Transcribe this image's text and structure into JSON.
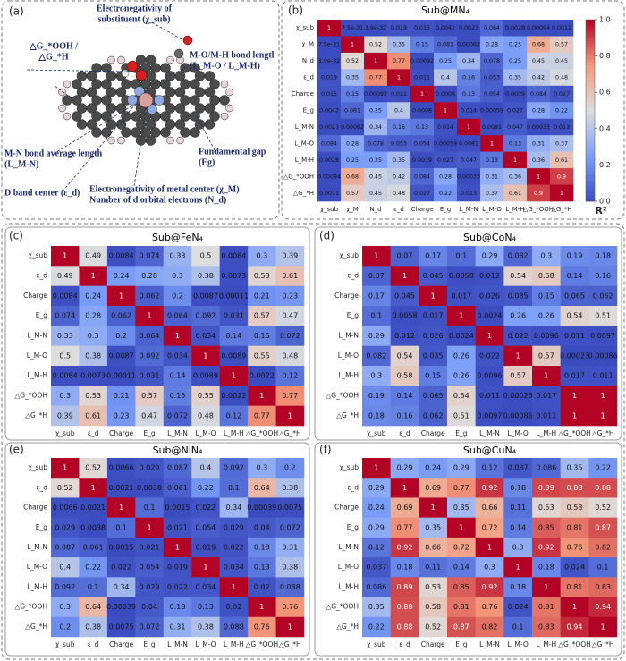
{
  "diagram": {
    "panel": "(a)",
    "labels": [
      [
        "Electronegativity of",
        "substituent (χ_sub)"
      ],
      [
        "△G_*OOH /",
        "△G_*H"
      ],
      [
        "M-O/M-H bond lengtl",
        "(L_M-O / L_M-H)"
      ],
      [
        "M-N bond average length",
        "(L_M-N)"
      ],
      [
        "Fundamental gap",
        "(Eg)"
      ],
      [
        "Electronegativity of metal center (χ_M)",
        "Number of d orbital electrons (N_d)"
      ],
      [
        "D band center (ε_d)"
      ]
    ]
  },
  "chart_data": [
    {
      "type": "heatmap",
      "panel": "(b)",
      "title": "Sub@MN₄",
      "categories": [
        "χ_sub",
        "χ_M",
        "N_d",
        "ε_d",
        "Charge",
        "E_g",
        "L_M-N",
        "L_M-O",
        "L_M-H",
        "△G_*OOH",
        "△G_*H"
      ],
      "values": [
        [
          1,
          7.5e-31,
          3.9e-32,
          0.019,
          0.015,
          0.0042,
          0.0023,
          0.084,
          0.0028,
          0.00094,
          0.0011
        ],
        [
          7.5e-31,
          1,
          0.52,
          0.35,
          0.15,
          0.081,
          0.00062,
          0.28,
          0.25,
          0.68,
          0.57
        ],
        [
          3.9e-32,
          0.52,
          1,
          0.77,
          0.00092,
          0.25,
          0.34,
          0.078,
          0.25,
          0.45,
          0.45
        ],
        [
          0.019,
          0.35,
          0.77,
          1,
          0.011,
          0.4,
          0.16,
          0.053,
          0.35,
          0.42,
          0.48
        ],
        [
          0.015,
          0.15,
          0.00092,
          0.011,
          1,
          0.0008,
          0.13,
          0.054,
          0.0039,
          0.084,
          0.027
        ],
        [
          0.0042,
          0.081,
          0.25,
          0.4,
          0.0008,
          1,
          0.014,
          0.00059,
          0.027,
          0.28,
          0.22
        ],
        [
          0.0023,
          0.00062,
          0.34,
          0.16,
          0.13,
          0.014,
          1,
          0.0081,
          0.047,
          0.00033,
          0.013
        ],
        [
          0.084,
          0.28,
          0.078,
          0.053,
          0.054,
          0.00059,
          0.0081,
          1,
          0.13,
          0.31,
          0.37
        ],
        [
          0.0028,
          0.25,
          0.25,
          0.35,
          0.0039,
          0.027,
          0.047,
          0.13,
          1,
          0.36,
          0.61
        ],
        [
          0.00094,
          0.68,
          0.45,
          0.42,
          0.084,
          0.28,
          0.00033,
          0.31,
          0.36,
          1,
          0.9
        ],
        [
          0.0011,
          0.57,
          0.45,
          0.48,
          0.027,
          0.22,
          0.013,
          0.37,
          0.61,
          0.9,
          1
        ]
      ],
      "colormap": "coolwarm",
      "clim": [
        0,
        1
      ],
      "cticks": [
        {
          "value": 0,
          "label": "0.0"
        },
        0.2,
        0.4,
        0.6,
        0.8,
        {
          "value": 1,
          "label": "1.0"
        }
      ],
      "colorbar_label": "R²"
    },
    {
      "type": "heatmap",
      "panel": "(c)",
      "title": "Sub@FeN₄",
      "categories": [
        "χ_sub",
        "ε_d",
        "Charge",
        "E_g",
        "L_M-N",
        "L_M-O",
        "L_M-H",
        "△G_*OOH",
        "△G_*H"
      ],
      "values": [
        [
          1,
          0.49,
          0.0084,
          0.074,
          0.33,
          0.5,
          0.0084,
          0.3,
          0.39
        ],
        [
          0.49,
          1,
          0.24,
          0.28,
          0.3,
          0.38,
          0.0073,
          0.53,
          0.61
        ],
        [
          0.0084,
          0.24,
          1,
          0.062,
          0.2,
          0.0087,
          0.00011,
          0.21,
          0.23
        ],
        [
          0.074,
          0.28,
          0.062,
          1,
          0.064,
          0.092,
          0.031,
          0.57,
          0.47
        ],
        [
          0.33,
          0.3,
          0.2,
          0.064,
          1,
          0.034,
          0.14,
          0.15,
          0.072
        ],
        [
          0.5,
          0.38,
          0.0087,
          0.092,
          0.034,
          1,
          0.0089,
          0.55,
          0.48
        ],
        [
          0.0084,
          0.0073,
          0.00011,
          0.031,
          0.14,
          0.0089,
          1,
          0.0022,
          0.12
        ],
        [
          0.3,
          0.53,
          0.21,
          0.57,
          0.15,
          0.55,
          0.0022,
          1,
          0.77
        ],
        [
          0.39,
          0.61,
          0.23,
          0.47,
          0.072,
          0.48,
          0.12,
          0.77,
          1
        ]
      ],
      "colormap": "coolwarm",
      "clim": [
        0,
        1
      ]
    },
    {
      "type": "heatmap",
      "panel": "(d)",
      "title": "Sub@CoN₄",
      "categories": [
        "χ_sub",
        "ε_d",
        "Charge",
        "E_g",
        "L_M-N",
        "L_M-O",
        "L_M-H",
        "△G_*OOH",
        "△G_*H"
      ],
      "values": [
        [
          1,
          0.07,
          0.17,
          0.1,
          0.29,
          0.082,
          0.3,
          0.19,
          0.18
        ],
        [
          0.07,
          1,
          0.045,
          0.0058,
          0.012,
          0.54,
          0.58,
          0.14,
          0.16
        ],
        [
          0.17,
          0.045,
          1,
          0.017,
          0.026,
          0.035,
          0.15,
          0.065,
          0.062
        ],
        [
          0.1,
          0.0058,
          0.017,
          1,
          0.0024,
          0.26,
          0.26,
          0.54,
          0.51
        ],
        [
          0.29,
          0.012,
          0.026,
          0.0024,
          1,
          0.022,
          0.0096,
          0.011,
          0.0097
        ],
        [
          0.082,
          0.54,
          0.035,
          0.26,
          0.022,
          1,
          0.57,
          0.00023,
          0.00086
        ],
        [
          0.3,
          0.58,
          0.15,
          0.26,
          0.0096,
          0.57,
          1,
          0.017,
          0.011
        ],
        [
          0.19,
          0.14,
          0.065,
          0.54,
          0.011,
          0.00023,
          0.017,
          1,
          1
        ],
        [
          0.18,
          0.16,
          0.062,
          0.51,
          0.0097,
          0.00086,
          0.011,
          1,
          1
        ]
      ],
      "colormap": "coolwarm",
      "clim": [
        0,
        1
      ]
    },
    {
      "type": "heatmap",
      "panel": "(e)",
      "title": "Sub@NiN₄",
      "categories": [
        "χ_sub",
        "ε_d",
        "Charge",
        "E_g",
        "L_M-N",
        "L_M-O",
        "L_M-H",
        "△G_*OOH",
        "△G_*H"
      ],
      "values": [
        [
          1,
          0.52,
          0.0066,
          0.029,
          0.087,
          0.4,
          0.092,
          0.3,
          0.2
        ],
        [
          0.52,
          1,
          0.0021,
          0.0038,
          0.061,
          0.22,
          0.1,
          0.64,
          0.38
        ],
        [
          0.0066,
          0.0021,
          1,
          0.1,
          0.0015,
          0.022,
          0.34,
          0.00039,
          0.0075
        ],
        [
          0.029,
          0.0038,
          0.1,
          1,
          0.021,
          0.054,
          0.029,
          0.04,
          0.072
        ],
        [
          0.087,
          0.061,
          0.0015,
          0.021,
          1,
          0.019,
          0.022,
          0.18,
          0.31
        ],
        [
          0.4,
          0.22,
          0.022,
          0.054,
          0.019,
          1,
          0.034,
          0.13,
          0.38
        ],
        [
          0.092,
          0.1,
          0.34,
          0.029,
          0.022,
          0.034,
          1,
          0.02,
          0.088
        ],
        [
          0.3,
          0.64,
          0.00039,
          0.04,
          0.18,
          0.13,
          0.02,
          1,
          0.76
        ],
        [
          0.2,
          0.38,
          0.0075,
          0.072,
          0.31,
          0.38,
          0.088,
          0.76,
          1
        ]
      ],
      "colormap": "coolwarm",
      "clim": [
        0,
        1
      ]
    },
    {
      "type": "heatmap",
      "panel": "(f)",
      "title": "Sub@CuN₄",
      "categories": [
        "χ_sub",
        "ε_d",
        "Charge",
        "E_g",
        "L_M-N",
        "L_M-O",
        "L_M-H",
        "△G_*OOH",
        "△G_*H"
      ],
      "values": [
        [
          1,
          0.29,
          0.24,
          0.29,
          0.12,
          0.037,
          0.086,
          0.35,
          0.22
        ],
        [
          0.29,
          1,
          0.69,
          0.77,
          0.92,
          0.18,
          0.89,
          0.88,
          0.88
        ],
        [
          0.24,
          0.69,
          1,
          0.35,
          0.66,
          0.11,
          0.53,
          0.58,
          0.52
        ],
        [
          0.29,
          0.77,
          0.35,
          1,
          0.72,
          0.14,
          0.85,
          0.81,
          0.87
        ],
        [
          0.12,
          0.92,
          0.66,
          0.72,
          1,
          0.3,
          0.92,
          0.76,
          0.82
        ],
        [
          0.037,
          0.18,
          0.11,
          0.14,
          0.3,
          1,
          0.18,
          0.024,
          0.1
        ],
        [
          0.086,
          0.89,
          0.53,
          0.85,
          0.92,
          0.18,
          1,
          0.81,
          0.83
        ],
        [
          0.35,
          0.88,
          0.58,
          0.81,
          0.76,
          0.024,
          0.81,
          1,
          0.94
        ],
        [
          0.22,
          0.88,
          0.52,
          0.87,
          0.82,
          0.1,
          0.83,
          0.94,
          1
        ]
      ],
      "colormap": "coolwarm",
      "clim": [
        0,
        1
      ]
    }
  ]
}
